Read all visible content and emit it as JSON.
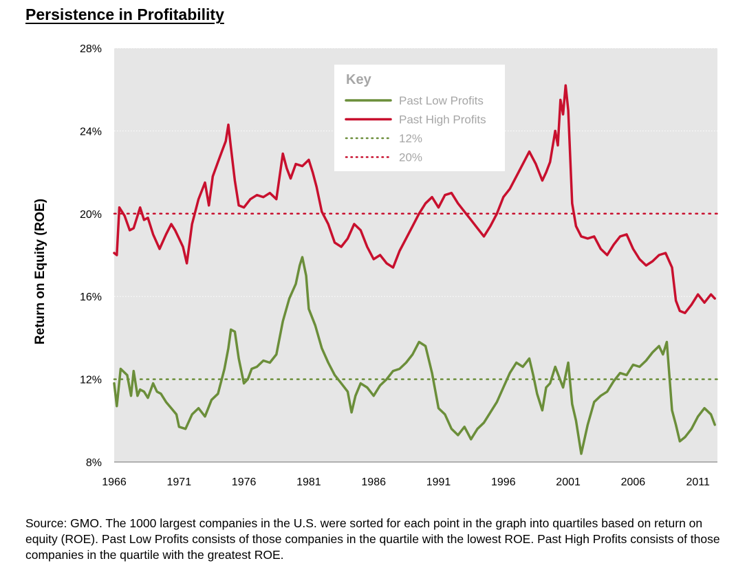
{
  "title": "Persistence in Profitability",
  "source": "Source: GMO. The 1000 largest companies in the U.S. were sorted for each point in the graph into quartiles based on return on equity (ROE). Past Low Profits consists of those companies in the quartile with the lowest ROE. Past High Profits consists of those companies in the quartile with the greatest ROE.",
  "chart_data": {
    "type": "line",
    "title": "Persistence in Profitability",
    "xlabel": "",
    "ylabel": "Return on Equity (ROE)",
    "xlim": [
      1966,
      2012.5
    ],
    "ylim": [
      8,
      28
    ],
    "x_ticks": [
      "1966",
      "1971",
      "1976",
      "1981",
      "1986",
      "1991",
      "1996",
      "2001",
      "2006",
      "2011"
    ],
    "y_ticks": [
      "8%",
      "12%",
      "16%",
      "20%",
      "24%",
      "28%"
    ],
    "grid": true,
    "legend": {
      "title": "Key",
      "placement": "top-center",
      "entries": [
        "Past Low Profits",
        "Past High Profits",
        "12%",
        "20%"
      ]
    },
    "colors": {
      "low": "#6b8e3a",
      "high": "#c8102e",
      "plot_bg": "#e6e6e6"
    },
    "reference_lines": [
      {
        "name": "12%",
        "value": 12,
        "color": "#6b8e3a",
        "style": "dotted"
      },
      {
        "name": "20%",
        "value": 20,
        "color": "#c8102e",
        "style": "dotted"
      }
    ],
    "series": [
      {
        "name": "Past Low Profits",
        "color": "#6b8e3a",
        "x": [
          1966,
          1966.2,
          1966.5,
          1967,
          1967.3,
          1967.5,
          1967.8,
          1968,
          1968.3,
          1968.6,
          1969,
          1969.3,
          1969.6,
          1970,
          1970.4,
          1970.8,
          1971,
          1971.5,
          1972,
          1972.5,
          1973,
          1973.5,
          1974,
          1974.5,
          1974.8,
          1975,
          1975.3,
          1975.6,
          1976,
          1976.3,
          1976.6,
          1977,
          1977.5,
          1978,
          1978.5,
          1979,
          1979.5,
          1980,
          1980.3,
          1980.5,
          1980.8,
          1981,
          1981.5,
          1982,
          1982.5,
          1983,
          1983.5,
          1984,
          1984.3,
          1984.6,
          1985,
          1985.5,
          1986,
          1986.5,
          1987,
          1987.5,
          1988,
          1988.5,
          1989,
          1989.5,
          1990,
          1990.5,
          1991,
          1991.5,
          1992,
          1992.5,
          1993,
          1993.5,
          1994,
          1994.5,
          1995,
          1995.5,
          1996,
          1996.5,
          1997,
          1997.5,
          1998,
          1998.3,
          1998.6,
          1999,
          1999.3,
          1999.6,
          2000,
          2000.3,
          2000.6,
          2001,
          2001.3,
          2001.6,
          2002,
          2002.5,
          2003,
          2003.5,
          2004,
          2004.5,
          2005,
          2005.5,
          2006,
          2006.5,
          2007,
          2007.5,
          2008,
          2008.3,
          2008.6,
          2009,
          2009.3,
          2009.6,
          2010,
          2010.5,
          2011,
          2011.5,
          2012,
          2012.3
        ],
        "values": [
          11.8,
          10.7,
          12.5,
          12.2,
          11.2,
          12.4,
          11.2,
          11.5,
          11.4,
          11.1,
          11.8,
          11.4,
          11.3,
          10.9,
          10.6,
          10.3,
          9.7,
          9.6,
          10.3,
          10.6,
          10.2,
          11.0,
          11.3,
          12.5,
          13.5,
          14.4,
          14.3,
          13.0,
          11.8,
          12.0,
          12.5,
          12.6,
          12.9,
          12.8,
          13.2,
          14.8,
          15.9,
          16.6,
          17.5,
          17.9,
          17.0,
          15.4,
          14.6,
          13.5,
          12.8,
          12.2,
          11.8,
          11.4,
          10.4,
          11.2,
          11.8,
          11.6,
          11.2,
          11.7,
          12.0,
          12.4,
          12.5,
          12.8,
          13.2,
          13.8,
          13.6,
          12.3,
          10.6,
          10.3,
          9.6,
          9.3,
          9.7,
          9.1,
          9.6,
          9.9,
          10.4,
          10.9,
          11.6,
          12.3,
          12.8,
          12.6,
          13.0,
          12.2,
          11.3,
          10.5,
          11.6,
          11.8,
          12.6,
          12.1,
          11.6,
          12.8,
          10.8,
          10.0,
          8.4,
          9.8,
          10.9,
          11.2,
          11.4,
          11.9,
          12.3,
          12.2,
          12.7,
          12.6,
          12.9,
          13.3,
          13.6,
          13.2,
          13.8,
          10.5,
          9.8,
          9.0,
          9.2,
          9.6,
          10.2,
          10.6,
          10.3,
          9.8
        ]
      },
      {
        "name": "Past High Profits",
        "color": "#c8102e",
        "x": [
          1966,
          1966.2,
          1966.4,
          1966.8,
          1967.2,
          1967.5,
          1968,
          1968.3,
          1968.6,
          1969,
          1969.5,
          1970,
          1970.4,
          1970.7,
          1971,
          1971.3,
          1971.6,
          1972,
          1972.5,
          1973,
          1973.3,
          1973.6,
          1974,
          1974.3,
          1974.6,
          1974.8,
          1975,
          1975.3,
          1975.6,
          1976,
          1976.5,
          1977,
          1977.5,
          1978,
          1978.5,
          1979,
          1979.3,
          1979.6,
          1980,
          1980.5,
          1981,
          1981.3,
          1981.6,
          1982,
          1982.5,
          1983,
          1983.5,
          1984,
          1984.5,
          1985,
          1985.5,
          1986,
          1986.5,
          1987,
          1987.5,
          1988,
          1988.5,
          1989,
          1989.5,
          1990,
          1990.5,
          1991,
          1991.5,
          1992,
          1992.5,
          1993,
          1993.5,
          1994,
          1994.5,
          1995,
          1995.5,
          1996,
          1996.5,
          1997,
          1997.5,
          1998,
          1998.5,
          1999,
          1999.3,
          1999.6,
          2000,
          2000.2,
          2000.4,
          2000.6,
          2000.8,
          2001,
          2001.3,
          2001.6,
          2002,
          2002.5,
          2003,
          2003.5,
          2004,
          2004.5,
          2005,
          2005.5,
          2006,
          2006.5,
          2007,
          2007.5,
          2008,
          2008.5,
          2009,
          2009.3,
          2009.6,
          2010,
          2010.5,
          2011,
          2011.5,
          2012,
          2012.3
        ],
        "values": [
          18.1,
          18.0,
          20.3,
          19.9,
          19.2,
          19.3,
          20.3,
          19.7,
          19.8,
          19.0,
          18.3,
          19.0,
          19.5,
          19.2,
          18.8,
          18.4,
          17.6,
          19.5,
          20.7,
          21.5,
          20.4,
          21.8,
          22.5,
          23.0,
          23.5,
          24.3,
          23.2,
          21.6,
          20.4,
          20.3,
          20.7,
          20.9,
          20.8,
          21.0,
          20.7,
          22.9,
          22.2,
          21.7,
          22.4,
          22.3,
          22.6,
          22.0,
          21.3,
          20.1,
          19.5,
          18.6,
          18.4,
          18.8,
          19.5,
          19.2,
          18.4,
          17.8,
          18.0,
          17.6,
          17.4,
          18.2,
          18.8,
          19.4,
          20.0,
          20.5,
          20.8,
          20.3,
          20.9,
          21.0,
          20.5,
          20.1,
          19.7,
          19.3,
          18.9,
          19.4,
          20.0,
          20.8,
          21.2,
          21.8,
          22.4,
          23.0,
          22.4,
          21.6,
          22.0,
          22.5,
          24.0,
          23.3,
          25.5,
          24.8,
          26.2,
          25.0,
          20.5,
          19.4,
          18.9,
          18.8,
          18.9,
          18.3,
          18.0,
          18.5,
          18.9,
          19.0,
          18.3,
          17.8,
          17.5,
          17.7,
          18.0,
          18.1,
          17.4,
          15.8,
          15.3,
          15.2,
          15.6,
          16.1,
          15.7,
          16.1,
          15.9
        ]
      }
    ]
  }
}
